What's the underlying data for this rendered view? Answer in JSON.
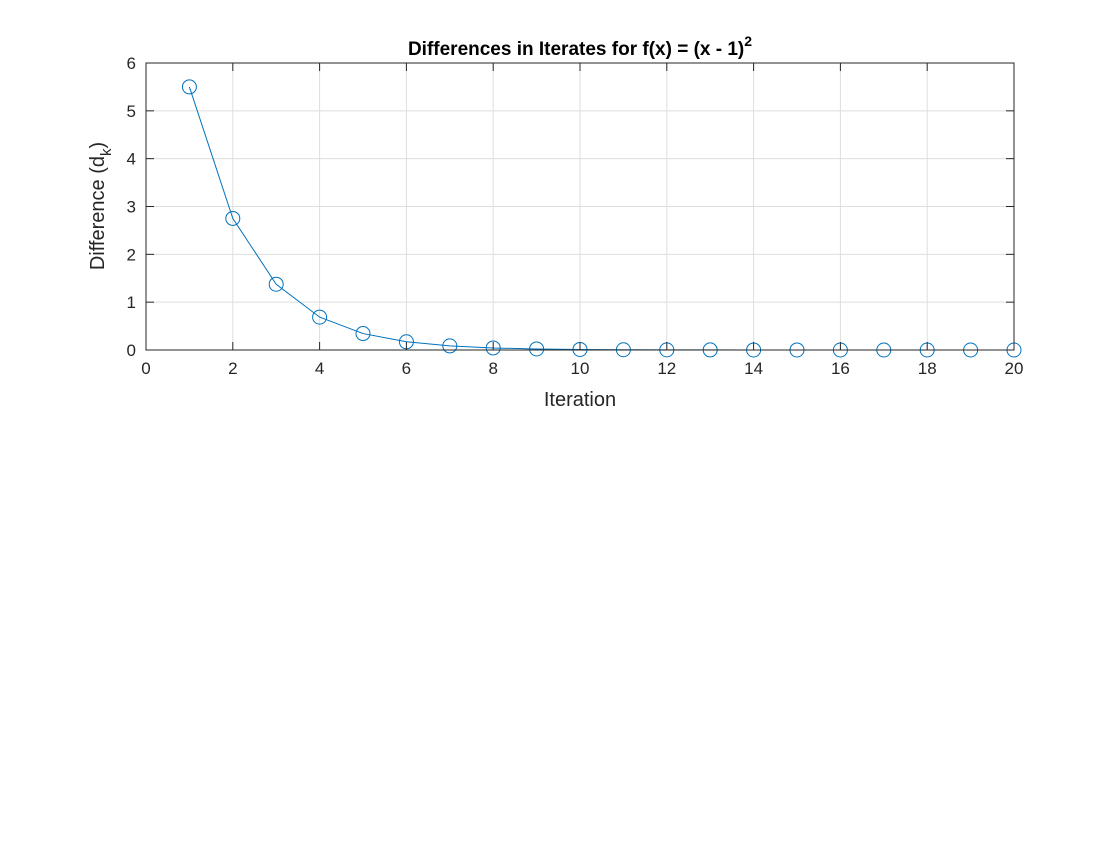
{
  "chart_data": {
    "type": "line",
    "title": "Differences in Iterates for f(x) = (x - 1)",
    "title_superscript": "2",
    "xlabel": "Iteration",
    "ylabel": "Difference (d",
    "ylabel_subscript": "k",
    "ylabel_suffix": ")",
    "xlim": [
      0,
      20
    ],
    "ylim": [
      0,
      6
    ],
    "xticks": [
      0,
      2,
      4,
      6,
      8,
      10,
      12,
      14,
      16,
      18,
      20
    ],
    "yticks": [
      0,
      1,
      2,
      3,
      4,
      5,
      6
    ],
    "xtick_labels": [
      "0",
      "2",
      "4",
      "6",
      "8",
      "10",
      "12",
      "14",
      "16",
      "18",
      "20"
    ],
    "ytick_labels": [
      "0",
      "1",
      "2",
      "3",
      "4",
      "5",
      "6"
    ],
    "grid": true,
    "legend": "none",
    "series": [
      {
        "color": "#0072BD",
        "marker": "circle",
        "x": [
          1,
          2,
          3,
          4,
          5,
          6,
          7,
          8,
          9,
          10,
          11,
          12,
          13,
          14,
          15,
          16,
          17,
          18,
          19,
          20
        ],
        "y": [
          5.5,
          2.75,
          1.375,
          0.6875,
          0.34375,
          0.171875,
          0.0859375,
          0.04296875,
          0.021484375,
          0.0107421875,
          0.00537109375,
          0.002685546875,
          0.0013427734375,
          0.00067138671875,
          0.000335693359375,
          0.0001678466796875,
          8.392333984375e-05,
          4.1961669921875e-05,
          2.09808349609375e-05,
          1.049041748046875e-05
        ]
      }
    ]
  }
}
